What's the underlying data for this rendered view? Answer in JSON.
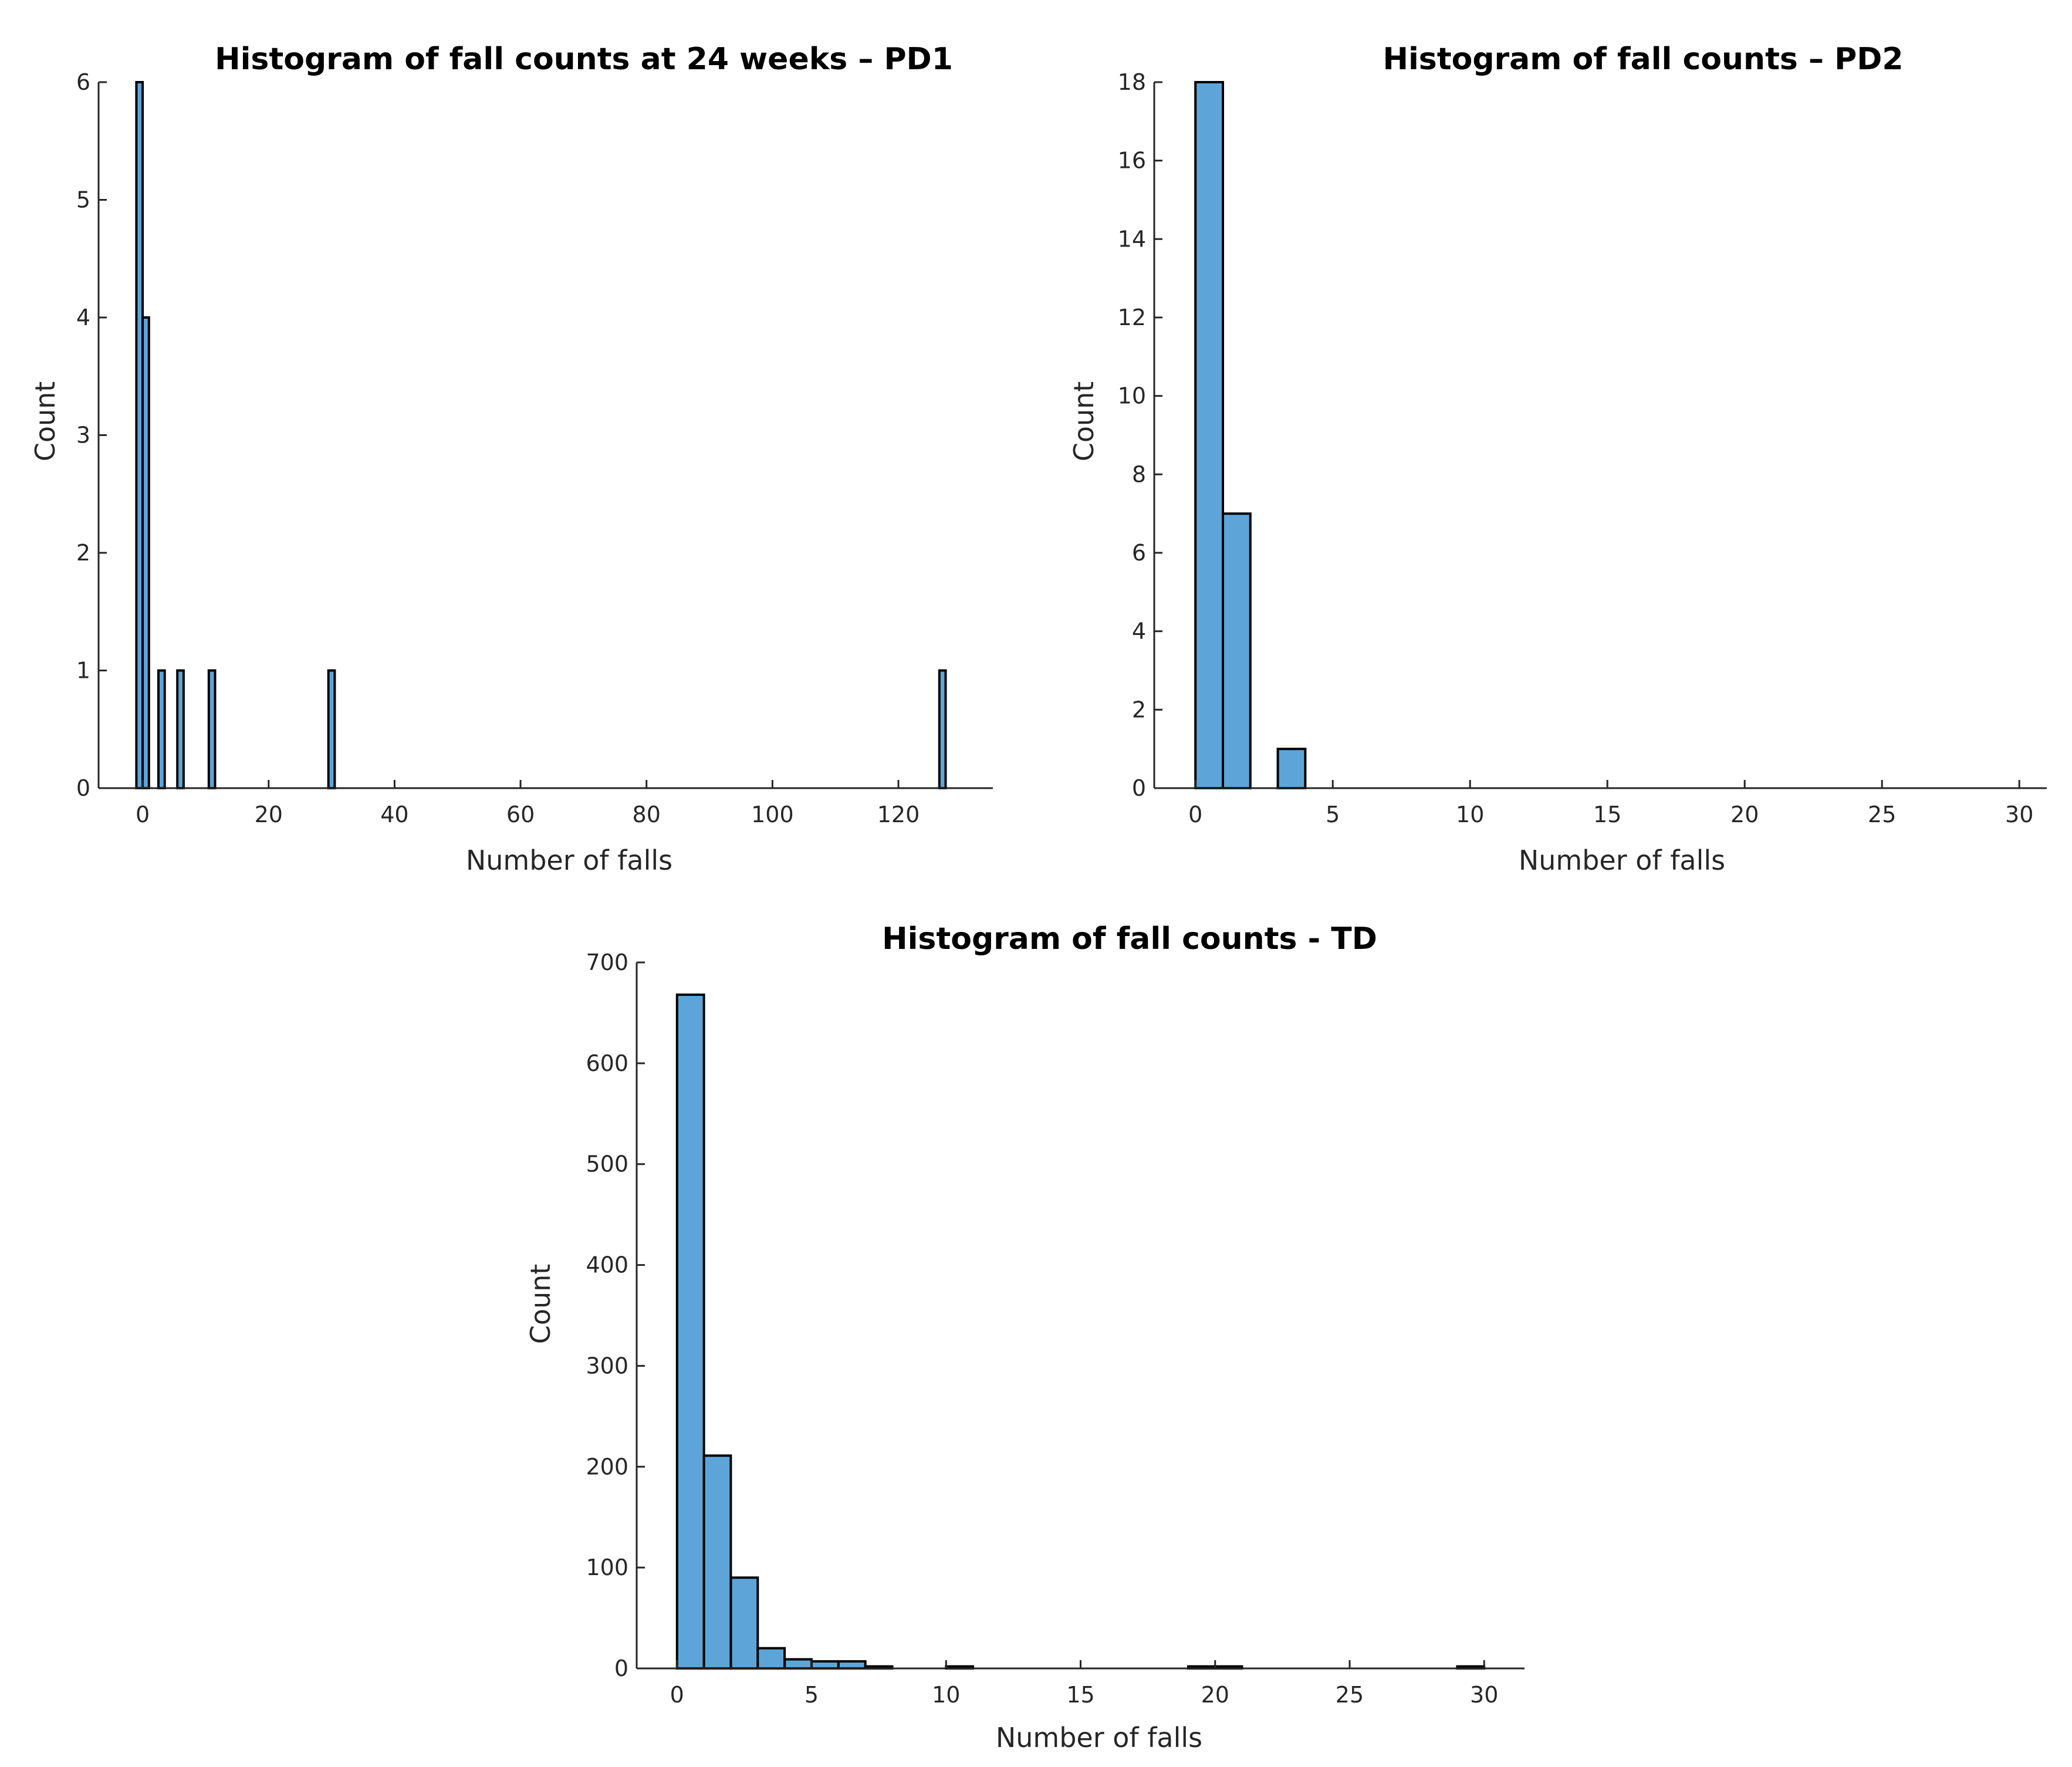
{
  "chart_data": [
    {
      "id": "pd1",
      "type": "bar",
      "title": "Histogram of fall counts at 24 weeks – PD1",
      "xlabel": "Number of falls",
      "ylabel": "Count",
      "xlim": [
        -7,
        135
      ],
      "ylim": [
        0,
        6
      ],
      "xticks": [
        0,
        20,
        40,
        60,
        80,
        100,
        120
      ],
      "yticks": [
        0,
        1,
        2,
        3,
        4,
        5,
        6
      ],
      "bin_width": 1,
      "bar_color": "#5DA5D8",
      "bins": [
        {
          "start": -1,
          "count": 6
        },
        {
          "start": 0,
          "count": 4
        },
        {
          "start": 2.5,
          "count": 1
        },
        {
          "start": 5.5,
          "count": 1
        },
        {
          "start": 10.5,
          "count": 1
        },
        {
          "start": 29.5,
          "count": 1
        },
        {
          "start": 126.5,
          "count": 1
        }
      ]
    },
    {
      "id": "pd2",
      "type": "bar",
      "title": "Histogram of fall counts – PD2",
      "xlabel": "Number of falls",
      "ylabel": "Count",
      "xlim": [
        -1.5,
        31
      ],
      "ylim": [
        0,
        18
      ],
      "xticks": [
        0,
        5,
        10,
        15,
        20,
        25,
        30
      ],
      "yticks": [
        0,
        2,
        4,
        6,
        8,
        10,
        12,
        14,
        16,
        18
      ],
      "bin_width": 1,
      "bar_color": "#5DA5D8",
      "bins": [
        {
          "start": 0,
          "count": 18
        },
        {
          "start": 1,
          "count": 7
        },
        {
          "start": 3,
          "count": 1
        }
      ]
    },
    {
      "id": "td",
      "type": "bar",
      "title": "Histogram of fall counts - TD",
      "xlabel": "Number of falls",
      "ylabel": "Count",
      "xlim": [
        -1.5,
        31.5
      ],
      "ylim": [
        0,
        700
      ],
      "xticks": [
        0,
        5,
        10,
        15,
        20,
        25,
        30
      ],
      "yticks": [
        0,
        100,
        200,
        300,
        400,
        500,
        600,
        700
      ],
      "bin_width": 1,
      "bar_color": "#5DA5D8",
      "bins": [
        {
          "start": 0,
          "count": 668
        },
        {
          "start": 1,
          "count": 211
        },
        {
          "start": 2,
          "count": 90
        },
        {
          "start": 3,
          "count": 20
        },
        {
          "start": 4,
          "count": 9
        },
        {
          "start": 5,
          "count": 7
        },
        {
          "start": 6,
          "count": 7
        },
        {
          "start": 7,
          "count": 2
        },
        {
          "start": 10,
          "count": 2
        },
        {
          "start": 19,
          "count": 2
        },
        {
          "start": 20,
          "count": 2
        },
        {
          "start": 29,
          "count": 2
        }
      ]
    }
  ]
}
